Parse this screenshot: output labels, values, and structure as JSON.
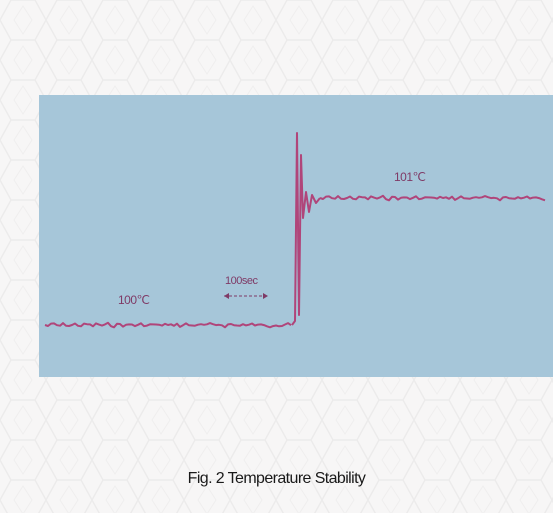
{
  "chart_data": {
    "type": "line",
    "caption": "Fig. 2 Temperature Stability",
    "annotations": {
      "before": "100℃",
      "after": "101℃",
      "interval": "100sec"
    },
    "grid": false,
    "legend": "none",
    "series": [
      {
        "segment": "before",
        "level": 100,
        "color": "#b0457a"
      },
      {
        "segment": "after",
        "level": 101,
        "color": "#b0457a"
      }
    ],
    "colors": {
      "panel": "#a6c6d9",
      "trace": "#b0457a",
      "label": "#7f3a66"
    }
  }
}
